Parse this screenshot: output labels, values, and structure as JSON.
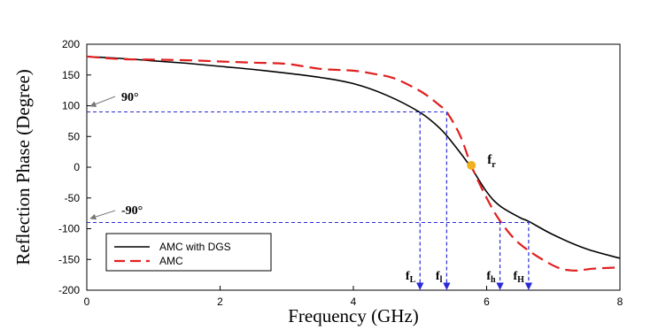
{
  "chart_data": {
    "type": "line",
    "title": "",
    "xlabel": "Frequency (GHz)",
    "ylabel": "Reflection Phase (Degree)",
    "xlim": [
      0,
      8
    ],
    "ylim": [
      -200,
      200
    ],
    "xticks": [
      0,
      2,
      4,
      6,
      8
    ],
    "yticks": [
      -200,
      -150,
      -100,
      -50,
      0,
      50,
      100,
      150,
      200
    ],
    "grid": false,
    "legend_position": "bottom-left",
    "series": [
      {
        "name": "AMC with DGS",
        "color": "#000000",
        "style": "solid",
        "x": [
          0,
          0.5,
          1,
          1.5,
          2,
          2.5,
          3,
          3.5,
          4,
          4.5,
          5,
          5.3,
          5.5,
          5.75,
          6,
          6.2,
          6.5,
          6.63,
          7,
          7.5,
          8
        ],
        "y": [
          180,
          177,
          173,
          169,
          164,
          159,
          153,
          146,
          136,
          117,
          89,
          63,
          38,
          2,
          -40,
          -63,
          -82,
          -88,
          -110,
          -133,
          -148
        ]
      },
      {
        "name": "AMC",
        "color": "#e02020",
        "style": "dashed",
        "x": [
          0,
          0.5,
          1,
          1.5,
          2,
          2.5,
          3,
          3.5,
          4,
          4.3,
          4.6,
          4.9,
          5.1,
          5.3,
          5.4,
          5.6,
          5.78,
          6,
          6.2,
          6.5,
          7,
          7.3,
          7.6,
          8
        ],
        "y": [
          180,
          176,
          175,
          174,
          172,
          170,
          168,
          160,
          157,
          152,
          145,
          130,
          117,
          100,
          90,
          52,
          0,
          -50,
          -87,
          -125,
          -160,
          -168,
          -165,
          -163
        ]
      }
    ],
    "reference_lines": [
      {
        "y": 90,
        "x_end": 5.4
      },
      {
        "y": -90,
        "x_end": 6.63
      }
    ],
    "markers": [
      {
        "label": "f_L",
        "x": 5.0,
        "y": 90
      },
      {
        "label": "f_l",
        "x": 5.4,
        "y": 90
      },
      {
        "label": "f_h",
        "x": 6.2,
        "y": -88
      },
      {
        "label": "f_H",
        "x": 6.63,
        "y": -88
      }
    ],
    "resonance_point": {
      "label": "f_r",
      "x": 5.77,
      "y": 3
    },
    "annotations": {
      "plus_90_text": "90°",
      "minus_90_text": "-90°"
    },
    "colors": {
      "reference_line": "#2a2ad8",
      "resonance_dot": "#f0b020"
    }
  }
}
